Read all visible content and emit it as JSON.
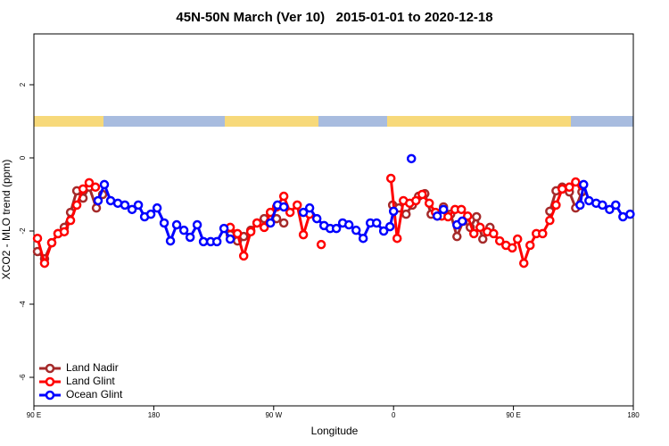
{
  "chart_data": {
    "type": "line",
    "title": "45N-50N March (Ver 10)   2015-01-01 to 2020-12-18",
    "x_label": "Longitude",
    "y_label": "XCO2 - MLO trend (ppm)",
    "xlim": [
      90,
      540
    ],
    "xticks": [
      {
        "value": 90,
        "label": "90 E"
      },
      {
        "value": 180,
        "label": "180"
      },
      {
        "value": 270,
        "label": "90 W"
      },
      {
        "value": 360,
        "label": "0"
      },
      {
        "value": 450,
        "label": "90 E"
      },
      {
        "value": 540,
        "label": "180"
      }
    ],
    "ylim": [
      -6.78,
      3.39
    ],
    "yticks": [
      -6,
      -4,
      -2,
      0,
      2
    ],
    "legend": "bottomleft",
    "series": [
      {
        "name": "Land Nadir",
        "color": "#a52a2a",
        "x": [
          92.7,
          98.0,
          103.4,
          108.1,
          112.8,
          117.5,
          122.2,
          126.9,
          131.5,
          136.9,
          141.6,
          null,
          237.4,
          242.8,
          247.5,
          252.8,
          257.5,
          262.9,
          267.6,
          272.2,
          277.6,
          null,
          359.3,
          364.0,
          369.4,
          374.1,
          378.8,
          383.5,
          388.2,
          392.8,
          397.5,
          402.9,
          407.6,
          412.3,
          417.6,
          422.3,
          427.0,
          432.4,
          null,
          477.3,
          482.0,
          486.6,
          492.0,
          496.7,
          501.4
        ],
        "values": [
          -2.56,
          -2.76,
          -2.32,
          -2.07,
          -1.9,
          -1.49,
          -0.9,
          -1.1,
          -0.8,
          -1.37,
          -1.0,
          null,
          -2.1,
          -2.27,
          -2.15,
          -1.98,
          -1.78,
          -1.66,
          -1.49,
          -1.66,
          -1.78,
          null,
          -1.29,
          -1.37,
          -1.54,
          -1.29,
          -1.05,
          -0.98,
          -1.54,
          -1.59,
          -1.34,
          -1.54,
          -2.15,
          -1.73,
          -1.9,
          -1.61,
          -2.22,
          -1.9,
          null,
          -1.46,
          -0.9,
          -0.8,
          -0.93,
          -1.37,
          -0.93
        ]
      },
      {
        "name": "Land Glint",
        "color": "#ff0000",
        "x": [
          92.7,
          98.0,
          103.4,
          108.1,
          112.8,
          117.5,
          122.2,
          126.9,
          131.5,
          136.2,
          null,
          237.4,
          242.8,
          247.5,
          252.8,
          257.5,
          262.9,
          267.6,
          272.2,
          277.6,
          282.3,
          287.7,
          292.3,
          297.0,
          null,
          305.7,
          null,
          358.0,
          362.7,
          367.4,
          372.1,
          376.8,
          381.5,
          386.8,
          391.5,
          396.2,
          400.9,
          406.2,
          410.9,
          415.6,
          420.3,
          425.0,
          430.4,
          435.1,
          439.7,
          444.4,
          449.1,
          453.1,
          457.8,
          462.5,
          467.2,
          471.9,
          477.3,
          482.0,
          486.6,
          492.0,
          496.7,
          501.4
        ],
        "values": [
          -2.2,
          -2.88,
          -2.32,
          -2.07,
          -2.02,
          -1.71,
          -1.29,
          -0.85,
          -0.68,
          -0.8,
          null,
          -1.9,
          -2.07,
          -2.68,
          -2.02,
          -1.78,
          -1.9,
          -1.49,
          -1.34,
          -1.05,
          -1.49,
          -1.29,
          -2.1,
          -1.54,
          null,
          -2.37,
          null,
          -0.56,
          -2.2,
          -1.17,
          -1.24,
          -1.17,
          -1.0,
          -1.24,
          -1.49,
          -1.59,
          -1.61,
          -1.41,
          -1.41,
          -1.59,
          -2.07,
          -1.9,
          -2.02,
          -2.07,
          -2.27,
          -2.39,
          -2.46,
          -2.22,
          -2.88,
          -2.39,
          -2.07,
          -2.07,
          -1.71,
          -1.29,
          -0.85,
          -0.8,
          -0.66,
          -0.76
        ]
      },
      {
        "name": "Ocean Glint",
        "color": "#0000ff",
        "x": [
          138.2,
          142.9,
          147.6,
          153.0,
          158.3,
          163.7,
          168.4,
          173.1,
          177.8,
          182.5,
          187.8,
          192.5,
          197.2,
          202.6,
          207.3,
          212.6,
          217.3,
          222.7,
          227.4,
          232.7,
          237.4,
          null,
          267.6,
          272.9,
          277.6,
          null,
          292.3,
          297.0,
          302.4,
          307.8,
          312.4,
          317.1,
          321.8,
          326.5,
          331.9,
          337.2,
          342.6,
          347.3,
          352.6,
          357.3,
          360.0,
          null,
          373.4,
          null,
          392.8,
          397.5,
          null,
          407.6,
          411.6,
          null,
          500.0,
          502.7,
          506.7,
          512.1,
          516.8,
          522.2,
          526.8,
          532.2,
          537.6
        ],
        "values": [
          -1.17,
          -0.73,
          -1.17,
          -1.24,
          -1.29,
          -1.41,
          -1.29,
          -1.61,
          -1.54,
          -1.37,
          -1.78,
          -2.27,
          -1.83,
          -1.98,
          -2.17,
          -1.83,
          -2.29,
          -2.29,
          -2.29,
          -1.93,
          -2.22,
          null,
          -1.78,
          -1.29,
          -1.34,
          null,
          -1.49,
          -1.37,
          -1.66,
          -1.85,
          -1.93,
          -1.93,
          -1.78,
          -1.83,
          -1.98,
          -2.2,
          -1.78,
          -1.78,
          -2.0,
          -1.88,
          -1.46,
          null,
          -0.02,
          null,
          -1.59,
          -1.41,
          null,
          -1.83,
          -1.73,
          null,
          -1.29,
          -0.73,
          -1.17,
          -1.24,
          -1.29,
          -1.41,
          -1.29,
          -1.61,
          -1.54
        ]
      }
    ]
  }
}
